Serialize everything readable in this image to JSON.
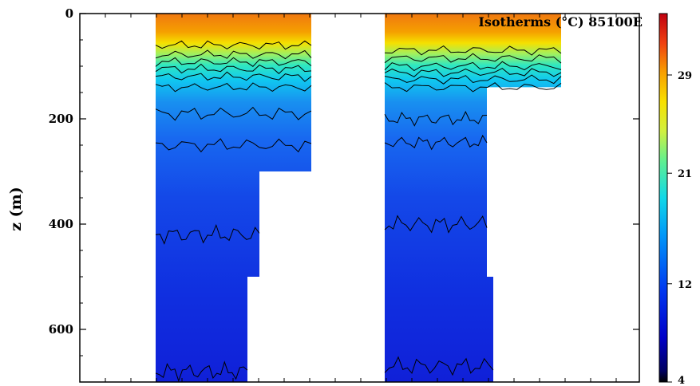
{
  "chart_data": {
    "type": "heatmap",
    "title": "Isotherms (°C) 85100E",
    "xlabel": "",
    "ylabel": "z (m)",
    "ylim": [
      0,
      700
    ],
    "y_ticks": [
      0,
      200,
      400,
      600
    ],
    "y_tick_labels": [
      "0",
      "200",
      "400",
      "600"
    ],
    "colorbar": {
      "min": 4,
      "max": 34,
      "ticks": [
        4,
        12,
        21,
        29
      ],
      "tick_labels": [
        "4",
        "12",
        "21",
        "29"
      ]
    },
    "contour_levels_c": [
      28,
      26,
      24,
      22,
      20,
      18,
      16,
      14,
      12,
      10,
      8,
      6
    ],
    "colors": {
      "warm": "#f07a10",
      "mid": "#1ee0e0",
      "deep": "#1040e0",
      "cold": "#0808a0",
      "contour": "#000000"
    },
    "panels": [
      {
        "name": "left",
        "max_depth_by_segment": [
          300,
          500,
          700
        ],
        "isotherm_depths_m": [
          {
            "temp": 28,
            "depth": 60
          },
          {
            "temp": 26,
            "depth": 78
          },
          {
            "temp": 24,
            "depth": 92
          },
          {
            "temp": 22,
            "depth": 105
          },
          {
            "temp": 20,
            "depth": 120
          },
          {
            "temp": 18,
            "depth": 140
          },
          {
            "temp": 14,
            "depth": 190
          },
          {
            "temp": 12,
            "depth": 250
          },
          {
            "temp": 10,
            "depth": 420
          },
          {
            "temp": 6,
            "depth": 680
          }
        ]
      },
      {
        "name": "right",
        "max_depth_by_segment": [
          140,
          500,
          700
        ],
        "isotherm_depths_m": [
          {
            "temp": 28,
            "depth": 70
          },
          {
            "temp": 26,
            "depth": 85
          },
          {
            "temp": 24,
            "depth": 100
          },
          {
            "temp": 22,
            "depth": 112
          },
          {
            "temp": 20,
            "depth": 125
          },
          {
            "temp": 18,
            "depth": 140
          },
          {
            "temp": 14,
            "depth": 200
          },
          {
            "temp": 12,
            "depth": 245
          },
          {
            "temp": 10,
            "depth": 400
          },
          {
            "temp": 6,
            "depth": 670
          }
        ]
      }
    ]
  }
}
